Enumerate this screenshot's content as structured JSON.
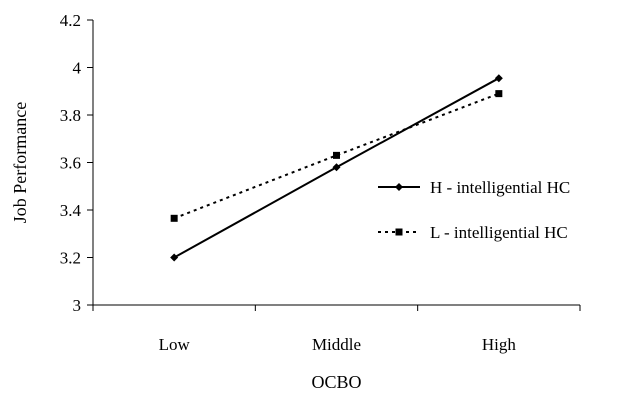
{
  "chart_data": {
    "type": "line",
    "title": "",
    "xlabel": "OCBO",
    "ylabel": "Job Performance",
    "categories": [
      "Low",
      "Middle",
      "High"
    ],
    "ylim": [
      3,
      4.2
    ],
    "yticks": [
      "3",
      "3.2",
      "3.4",
      "3.6",
      "3.8",
      "4",
      "4.2"
    ],
    "grid": false,
    "legend_position": "right",
    "series": [
      {
        "name": "H - intelligential HC",
        "values": [
          3.2,
          3.58,
          3.955
        ],
        "line_style": "solid",
        "marker": "diamond",
        "color": "#000000"
      },
      {
        "name": "L - intelligential HC",
        "values": [
          3.365,
          3.63,
          3.89
        ],
        "line_style": "dotted",
        "marker": "square",
        "color": "#000000"
      }
    ]
  }
}
